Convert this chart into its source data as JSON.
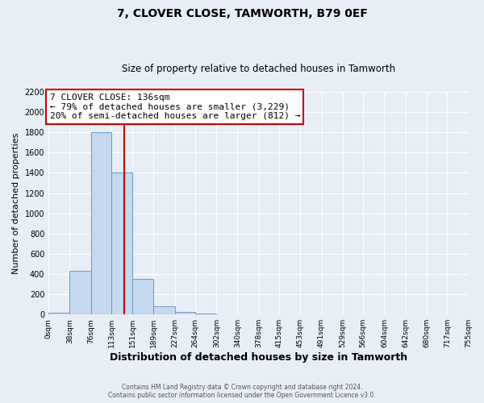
{
  "title": "7, CLOVER CLOSE, TAMWORTH, B79 0EF",
  "subtitle": "Size of property relative to detached houses in Tamworth",
  "xlabel": "Distribution of detached houses by size in Tamworth",
  "ylabel": "Number of detached properties",
  "bar_color": "#c5d8ed",
  "bar_edge_color": "#6699cc",
  "bg_color": "#e8eef5",
  "grid_color": "#ffffff",
  "vline_x": 136,
  "vline_color": "#cc0000",
  "annotation_line1": "7 CLOVER CLOSE: 136sqm",
  "annotation_line2": "← 79% of detached houses are smaller (3,229)",
  "annotation_line3": "20% of semi-detached houses are larger (812) →",
  "annotation_box_color": "#ffffff",
  "annotation_box_edge_color": "#cc0000",
  "bin_edges": [
    0,
    38,
    76,
    113,
    151,
    189,
    227,
    264,
    302,
    340,
    378,
    415,
    453,
    491,
    529,
    566,
    604,
    642,
    680,
    717,
    755
  ],
  "bin_counts": [
    18,
    430,
    1800,
    1400,
    350,
    80,
    25,
    10,
    0,
    0,
    0,
    0,
    0,
    0,
    0,
    0,
    0,
    0,
    0,
    0
  ],
  "footer_line1": "Contains HM Land Registry data © Crown copyright and database right 2024.",
  "footer_line2": "Contains public sector information licensed under the Open Government Licence v3.0.",
  "ylim": [
    0,
    2200
  ],
  "yticks": [
    0,
    200,
    400,
    600,
    800,
    1000,
    1200,
    1400,
    1600,
    1800,
    2000,
    2200
  ]
}
